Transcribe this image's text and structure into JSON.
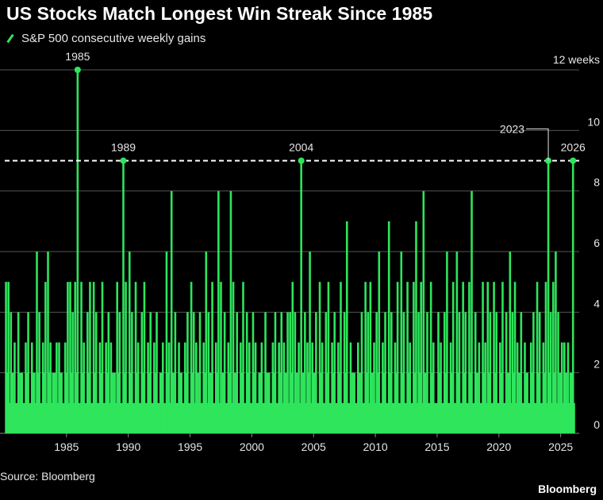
{
  "header": {
    "title": "US Stocks Match Longest Win Streak Since 1985"
  },
  "footer": {
    "source": "Source: Bloomberg",
    "brand": "Bloomberg"
  },
  "chart_data": {
    "type": "bar",
    "title": "US Stocks Match Longest Win Streak Since 1985",
    "xlabel": "",
    "ylabel": "",
    "series": [
      {
        "name": "S&P 500 consecutive weekly gains",
        "color": "#2ee55c"
      }
    ],
    "xlim": [
      1980,
      2026.5
    ],
    "ylim": [
      0,
      12
    ],
    "y_ticks": [
      {
        "value": 0,
        "label": "0"
      },
      {
        "value": 2,
        "label": "2"
      },
      {
        "value": 4,
        "label": "4"
      },
      {
        "value": 6,
        "label": "6"
      },
      {
        "value": 8,
        "label": "8"
      },
      {
        "value": 10,
        "label": "10"
      },
      {
        "value": 12,
        "label": "12 weeks"
      }
    ],
    "x_ticks": [
      {
        "value": 1985,
        "label": "1985"
      },
      {
        "value": 1990,
        "label": "1990"
      },
      {
        "value": 1995,
        "label": "1995"
      },
      {
        "value": 2000,
        "label": "2000"
      },
      {
        "value": 2005,
        "label": "2005"
      },
      {
        "value": 2010,
        "label": "2010"
      },
      {
        "value": 2015,
        "label": "2015"
      },
      {
        "value": 2020,
        "label": "2020"
      },
      {
        "value": 2025,
        "label": "2025"
      }
    ],
    "grid": true,
    "reference_line": {
      "value": 9,
      "style": "dashed",
      "color": "#ffffff"
    },
    "annotations": [
      {
        "label": "1985",
        "x": 1985.9,
        "value": 12
      },
      {
        "label": "1989",
        "x": 1989.6,
        "value": 9
      },
      {
        "label": "2004",
        "x": 2004.0,
        "value": 9
      },
      {
        "label": "2023",
        "x": 2024.0,
        "value": 9
      },
      {
        "label": "2026",
        "x": 2026.0,
        "value": 9
      }
    ],
    "streaks": [
      [
        1980.1,
        5
      ],
      [
        1980.3,
        5
      ],
      [
        1980.5,
        4
      ],
      [
        1980.8,
        3
      ],
      [
        1981.1,
        4
      ],
      [
        1981.4,
        2
      ],
      [
        1981.7,
        3
      ],
      [
        1981.9,
        4
      ],
      [
        1982.2,
        3
      ],
      [
        1982.4,
        2
      ],
      [
        1982.6,
        6
      ],
      [
        1982.8,
        4
      ],
      [
        1983.1,
        3
      ],
      [
        1983.3,
        5
      ],
      [
        1983.5,
        6
      ],
      [
        1983.7,
        3
      ],
      [
        1983.9,
        2
      ],
      [
        1984.2,
        3
      ],
      [
        1984.4,
        3
      ],
      [
        1984.6,
        2
      ],
      [
        1984.9,
        3
      ],
      [
        1985.1,
        5
      ],
      [
        1985.3,
        5
      ],
      [
        1985.5,
        4
      ],
      [
        1985.7,
        5
      ],
      [
        1985.9,
        12
      ],
      [
        1986.2,
        5
      ],
      [
        1986.4,
        3
      ],
      [
        1986.7,
        4
      ],
      [
        1986.9,
        5
      ],
      [
        1987.2,
        5
      ],
      [
        1987.4,
        4
      ],
      [
        1987.7,
        3
      ],
      [
        1987.9,
        5
      ],
      [
        1988.2,
        3
      ],
      [
        1988.4,
        4
      ],
      [
        1988.6,
        3
      ],
      [
        1988.9,
        2
      ],
      [
        1989.1,
        5
      ],
      [
        1989.3,
        4
      ],
      [
        1989.6,
        9
      ],
      [
        1989.8,
        5
      ],
      [
        1990.1,
        6
      ],
      [
        1990.3,
        4
      ],
      [
        1990.6,
        5
      ],
      [
        1990.8,
        3
      ],
      [
        1991.1,
        4
      ],
      [
        1991.3,
        5
      ],
      [
        1991.6,
        3
      ],
      [
        1991.8,
        4
      ],
      [
        1992.1,
        3
      ],
      [
        1992.3,
        4
      ],
      [
        1992.6,
        2
      ],
      [
        1992.8,
        3
      ],
      [
        1993.1,
        6
      ],
      [
        1993.3,
        3
      ],
      [
        1993.5,
        8
      ],
      [
        1993.8,
        4
      ],
      [
        1994.1,
        3
      ],
      [
        1994.3,
        2
      ],
      [
        1994.6,
        3
      ],
      [
        1994.8,
        4
      ],
      [
        1995.1,
        5
      ],
      [
        1995.3,
        4
      ],
      [
        1995.5,
        3
      ],
      [
        1995.8,
        4
      ],
      [
        1996.1,
        3
      ],
      [
        1996.3,
        6
      ],
      [
        1996.5,
        4
      ],
      [
        1996.8,
        5
      ],
      [
        1997.1,
        3
      ],
      [
        1997.3,
        8
      ],
      [
        1997.5,
        5
      ],
      [
        1997.8,
        4
      ],
      [
        1998.1,
        3
      ],
      [
        1998.3,
        8
      ],
      [
        1998.5,
        5
      ],
      [
        1998.8,
        4
      ],
      [
        1999.1,
        3
      ],
      [
        1999.3,
        5
      ],
      [
        1999.6,
        4
      ],
      [
        1999.8,
        3
      ],
      [
        2000.1,
        4
      ],
      [
        2000.3,
        3
      ],
      [
        2000.6,
        2
      ],
      [
        2000.8,
        3
      ],
      [
        2001.1,
        4
      ],
      [
        2001.4,
        2
      ],
      [
        2001.7,
        3
      ],
      [
        2001.9,
        4
      ],
      [
        2002.2,
        3
      ],
      [
        2002.4,
        4
      ],
      [
        2002.6,
        3
      ],
      [
        2002.9,
        4
      ],
      [
        2003.1,
        4
      ],
      [
        2003.3,
        5
      ],
      [
        2003.5,
        4
      ],
      [
        2003.8,
        3
      ],
      [
        2004.0,
        9
      ],
      [
        2004.3,
        4
      ],
      [
        2004.5,
        3
      ],
      [
        2004.7,
        6
      ],
      [
        2004.9,
        3
      ],
      [
        2005.2,
        4
      ],
      [
        2005.5,
        5
      ],
      [
        2005.7,
        3
      ],
      [
        2006.0,
        4
      ],
      [
        2006.2,
        5
      ],
      [
        2006.5,
        3
      ],
      [
        2006.7,
        4
      ],
      [
        2007.0,
        3
      ],
      [
        2007.2,
        5
      ],
      [
        2007.5,
        4
      ],
      [
        2007.7,
        7
      ],
      [
        2008.0,
        3
      ],
      [
        2008.3,
        2
      ],
      [
        2008.6,
        3
      ],
      [
        2008.9,
        4
      ],
      [
        2009.2,
        5
      ],
      [
        2009.4,
        4
      ],
      [
        2009.6,
        5
      ],
      [
        2009.9,
        3
      ],
      [
        2010.1,
        4
      ],
      [
        2010.3,
        6
      ],
      [
        2010.6,
        3
      ],
      [
        2010.8,
        4
      ],
      [
        2011.1,
        7
      ],
      [
        2011.3,
        4
      ],
      [
        2011.6,
        3
      ],
      [
        2011.8,
        5
      ],
      [
        2012.1,
        6
      ],
      [
        2012.3,
        4
      ],
      [
        2012.6,
        5
      ],
      [
        2012.8,
        3
      ],
      [
        2013.1,
        5
      ],
      [
        2013.3,
        7
      ],
      [
        2013.5,
        4
      ],
      [
        2013.7,
        5
      ],
      [
        2013.9,
        8
      ],
      [
        2014.2,
        4
      ],
      [
        2014.5,
        5
      ],
      [
        2014.7,
        3
      ],
      [
        2015.1,
        4
      ],
      [
        2015.3,
        3
      ],
      [
        2015.6,
        4
      ],
      [
        2015.8,
        6
      ],
      [
        2016.1,
        3
      ],
      [
        2016.3,
        5
      ],
      [
        2016.6,
        6
      ],
      [
        2016.8,
        4
      ],
      [
        2017.1,
        5
      ],
      [
        2017.3,
        4
      ],
      [
        2017.6,
        5
      ],
      [
        2017.8,
        8
      ],
      [
        2018.1,
        4
      ],
      [
        2018.4,
        3
      ],
      [
        2018.7,
        5
      ],
      [
        2018.9,
        3
      ],
      [
        2019.1,
        5
      ],
      [
        2019.3,
        4
      ],
      [
        2019.6,
        5
      ],
      [
        2019.8,
        4
      ],
      [
        2020.1,
        3
      ],
      [
        2020.3,
        5
      ],
      [
        2020.6,
        4
      ],
      [
        2020.9,
        6
      ],
      [
        2021.1,
        4
      ],
      [
        2021.3,
        5
      ],
      [
        2021.5,
        3
      ],
      [
        2021.8,
        4
      ],
      [
        2022.1,
        3
      ],
      [
        2022.3,
        2
      ],
      [
        2022.6,
        3
      ],
      [
        2022.8,
        4
      ],
      [
        2023.1,
        5
      ],
      [
        2023.3,
        4
      ],
      [
        2023.6,
        3
      ],
      [
        2023.8,
        5
      ],
      [
        2024.0,
        9
      ],
      [
        2024.2,
        4
      ],
      [
        2024.4,
        5
      ],
      [
        2024.6,
        6
      ],
      [
        2024.8,
        4
      ],
      [
        2025.1,
        3
      ],
      [
        2025.3,
        3
      ],
      [
        2025.6,
        3
      ],
      [
        2025.8,
        2
      ],
      [
        2026.0,
        9
      ]
    ]
  }
}
